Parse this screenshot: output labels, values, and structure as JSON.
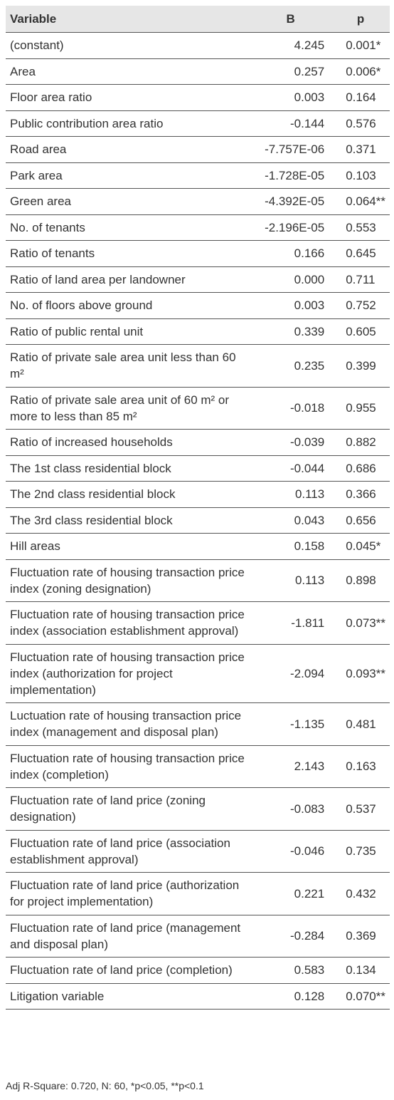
{
  "table": {
    "header": [
      "Variable",
      "B",
      "p"
    ],
    "rows": [
      [
        "(constant)",
        "4.245",
        "0.001*"
      ],
      [
        "Area",
        "0.257",
        "0.006*"
      ],
      [
        "Floor area ratio",
        "0.003",
        "0.164"
      ],
      [
        "Public contribution area ratio",
        "-0.144",
        "0.576"
      ],
      [
        "Road area",
        "-7.757E-06",
        "0.371"
      ],
      [
        "Park area",
        "-1.728E-05",
        "0.103"
      ],
      [
        "Green area",
        "-4.392E-05",
        "0.064**"
      ],
      [
        "No. of tenants",
        "-2.196E-05",
        "0.553"
      ],
      [
        "Ratio of tenants",
        "0.166",
        "0.645"
      ],
      [
        "Ratio of land area per landowner",
        "0.000",
        "0.711"
      ],
      [
        "No. of floors above ground",
        "0.003",
        "0.752"
      ],
      [
        "Ratio of public rental unit",
        "0.339",
        "0.605"
      ],
      [
        "Ratio of private sale area unit less than 60 m²",
        "0.235",
        "0.399"
      ],
      [
        "Ratio of private sale area unit of 60 m² or more to less than 85 m²",
        "-0.018",
        "0.955"
      ],
      [
        "Ratio of increased households",
        "-0.039",
        "0.882"
      ],
      [
        "The 1st class residential block",
        "-0.044",
        "0.686"
      ],
      [
        "The 2nd class residential block",
        "0.113",
        "0.366"
      ],
      [
        "The 3rd class residential block",
        "0.043",
        "0.656"
      ],
      [
        "Hill areas",
        "0.158",
        "0.045*"
      ],
      [
        "Fluctuation rate of housing transaction price index (zoning designation)",
        "0.113",
        "0.898"
      ],
      [
        "Fluctuation rate of housing transaction price index (association establishment approval)",
        "-1.811",
        "0.073**"
      ],
      [
        "Fluctuation rate of housing transaction price index (authorization for project implementation)",
        "-2.094",
        "0.093**"
      ],
      [
        "Luctuation rate of housing transaction price index (management and disposal plan)",
        "-1.135",
        "0.481"
      ],
      [
        "Fluctuation rate of housing transaction price index (completion)",
        "2.143",
        "0.163"
      ],
      [
        "Fluctuation rate of land price (zoning designation)",
        "-0.083",
        "0.537"
      ],
      [
        "Fluctuation rate of land price (association establishment approval)",
        "-0.046",
        "0.735"
      ],
      [
        "Fluctuation rate of land price (authorization for project implementation)",
        "0.221",
        "0.432"
      ],
      [
        "Fluctuation rate of land price (management and disposal plan)",
        "-0.284",
        "0.369"
      ],
      [
        "Fluctuation rate of land price (completion)",
        "0.583",
        "0.134"
      ],
      [
        "Litigation variable",
        "0.128",
        "0.070**"
      ]
    ],
    "footnote": "Adj R-Square: 0.720, N: 60, *p<0.05, **p<0.1"
  }
}
